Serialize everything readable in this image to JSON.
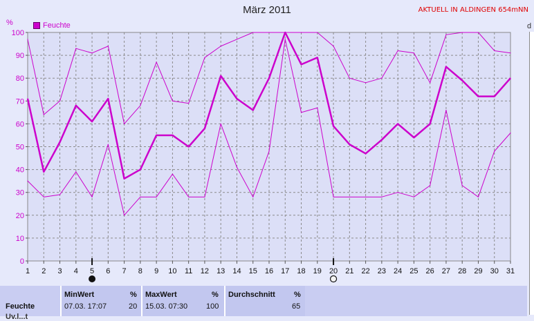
{
  "title": "März 2011",
  "station_label": "AKTUELL IN ALDINGEN 654mNN",
  "right_stub": "d",
  "chart_data": {
    "type": "line",
    "title": "März 2011",
    "ylabel": "%",
    "ylim": [
      0,
      100
    ],
    "yticks": [
      0,
      10,
      20,
      30,
      40,
      50,
      60,
      70,
      80,
      90,
      100
    ],
    "x": [
      1,
      2,
      3,
      4,
      5,
      6,
      7,
      8,
      9,
      10,
      11,
      12,
      13,
      14,
      15,
      16,
      17,
      18,
      19,
      20,
      21,
      22,
      23,
      24,
      25,
      26,
      27,
      28,
      29,
      30,
      31
    ],
    "xlim": [
      1,
      31
    ],
    "grid": true,
    "legend": "top-left",
    "legend_label": "Feuchte",
    "series": [
      {
        "name": "Feuchte",
        "role": "avg",
        "color": "#cc00cc",
        "values": [
          71,
          39,
          52,
          68,
          61,
          71,
          36,
          40,
          55,
          55,
          50,
          58,
          81,
          71,
          66,
          80,
          100,
          86,
          89,
          59,
          51,
          47,
          53,
          60,
          54,
          60,
          85,
          79,
          72,
          72,
          80
        ]
      },
      {
        "role": "max",
        "color": "#cc00cc",
        "values": [
          97,
          64,
          70,
          93,
          91,
          94,
          60,
          68,
          87,
          70,
          69,
          89,
          94,
          97,
          100,
          100,
          100,
          100,
          100,
          94,
          80,
          78,
          80,
          92,
          91,
          78,
          99,
          100,
          100,
          92,
          91
        ]
      },
      {
        "role": "min",
        "color": "#cc00cc",
        "values": [
          35,
          28,
          29,
          39,
          28,
          51,
          20,
          28,
          28,
          38,
          28,
          28,
          60,
          41,
          28,
          48,
          97,
          65,
          67,
          28,
          28,
          28,
          28,
          30,
          28,
          33,
          66,
          33,
          28,
          48,
          56
        ]
      }
    ],
    "markers": [
      {
        "x": 5,
        "type": "new-moon"
      },
      {
        "x": 20,
        "type": "full-moon"
      }
    ]
  },
  "stats": {
    "row_label": "Feuchte",
    "row_label_2": "Uv.l...t",
    "min": {
      "header": "MinWert",
      "unit": "%",
      "date": "07.03.  17:07",
      "value": "20"
    },
    "max": {
      "header": "MaxWert",
      "unit": "%",
      "date": "15.03.  07:30",
      "value": "100"
    },
    "avg": {
      "header": "Durchschnitt",
      "unit": "%",
      "value": "65"
    }
  }
}
